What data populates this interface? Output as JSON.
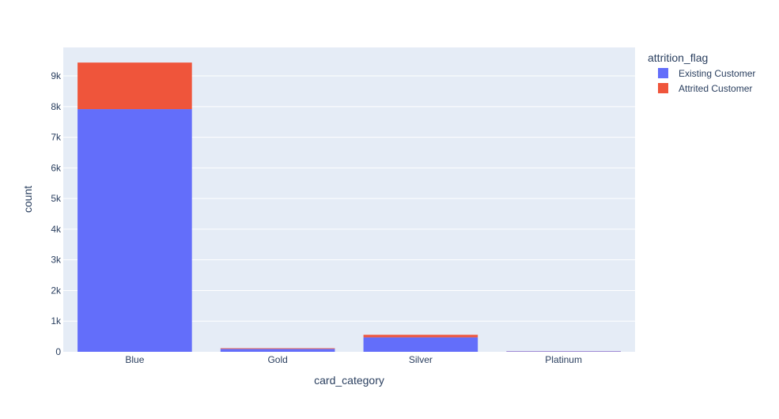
{
  "chart_data": {
    "type": "bar",
    "barmode": "stack",
    "categories": [
      "Blue",
      "Gold",
      "Silver",
      "Platinum"
    ],
    "series": [
      {
        "name": "Existing Customer",
        "color": "#636efa",
        "values": [
          7917,
          95,
          473,
          15
        ]
      },
      {
        "name": "Attrited Customer",
        "color": "#ef553b",
        "values": [
          1519,
          21,
          82,
          5
        ]
      }
    ],
    "xlabel": "card_category",
    "ylabel": "count",
    "ylim": [
      0,
      9930
    ],
    "yticks": [
      0,
      1000,
      2000,
      3000,
      4000,
      5000,
      6000,
      7000,
      8000,
      9000
    ],
    "ytick_labels": [
      "0",
      "1k",
      "2k",
      "3k",
      "4k",
      "5k",
      "6k",
      "7k",
      "8k",
      "9k"
    ],
    "legend": {
      "title": "attrition_flag",
      "placement": "top-right"
    },
    "plot_background": "#e5ecf6",
    "grid": true
  }
}
